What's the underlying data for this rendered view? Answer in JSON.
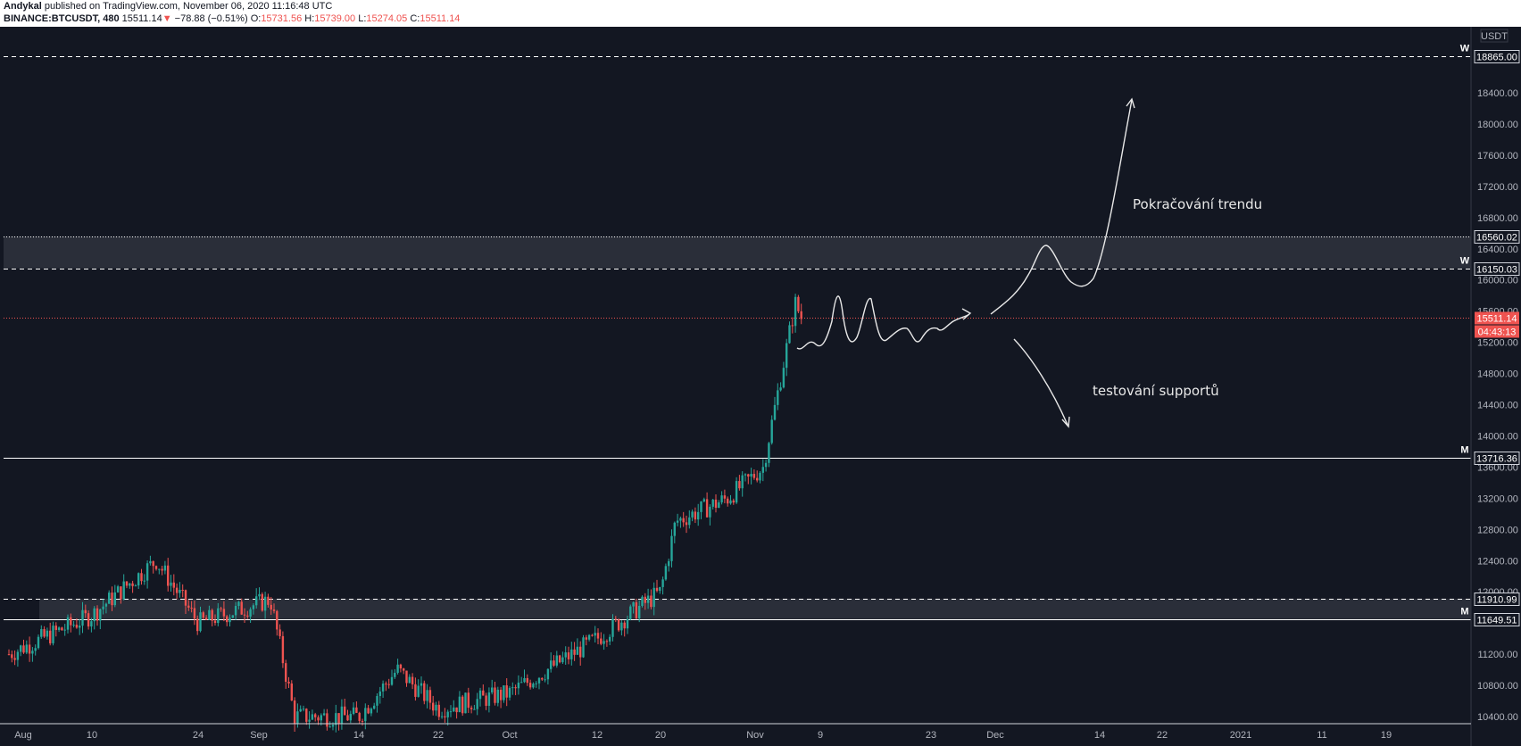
{
  "header": {
    "author": "Andykal",
    "published": " published on TradingView.com, November 06, 2020 11:16:48 UTC",
    "symbol": "BINANCE:BTCUSDT, 480",
    "last": "15511.14",
    "change_arrow": "▼",
    "change": "−78.88 (−0.51%)",
    "o_label": "O:",
    "o_val": "15731.56",
    "h_label": "H:",
    "h_val": "15739.00",
    "l_label": "L:",
    "l_val": "15274.05",
    "c_label": "C:",
    "c_val": "15511.14"
  },
  "price_axis": {
    "currency_label": "USDT",
    "ticks": [
      "18400.00",
      "18000.00",
      "17600.00",
      "17200.00",
      "16800.00",
      "16400.00",
      "16000.00",
      "15600.00",
      "15200.00",
      "14800.00",
      "14400.00",
      "14000.00",
      "13600.00",
      "13200.00",
      "12800.00",
      "12400.00",
      "12000.00",
      "11200.00",
      "10800.00",
      "10400.00"
    ],
    "last_price_label": "15511.14",
    "countdown_label": "04:43:13"
  },
  "time_axis": {
    "labels": [
      "Aug",
      "10",
      "24",
      "Sep",
      "14",
      "22",
      "Oct",
      "12",
      "20",
      "Nov",
      "9",
      "23",
      "Dec",
      "14",
      "22",
      "2021",
      "11",
      "19"
    ]
  },
  "levels": [
    {
      "price": 18865.0,
      "label": "18865.00",
      "style": "dashed",
      "tag": "W"
    },
    {
      "price": 16560.02,
      "label": "16560.02",
      "style": "dotted",
      "tag": ""
    },
    {
      "price": 16150.03,
      "label": "16150.03",
      "style": "dashed",
      "tag": "W"
    },
    {
      "price": 13716.36,
      "label": "13716.36",
      "style": "solid",
      "tag": "M"
    },
    {
      "price": 11910.99,
      "label": "11910.99",
      "style": "dashed",
      "tag": ""
    },
    {
      "price": 11649.51,
      "label": "11649.51",
      "style": "solid",
      "tag": "M"
    }
  ],
  "annotations": {
    "bull_text": "Pokračování trendu",
    "bear_text": "testování supportů"
  },
  "colors": {
    "background": "#131722",
    "up": "#26a69a",
    "down": "#ef5350",
    "zone": "#2a2e39",
    "line": "#ffffff",
    "axis_text": "#b2b5be"
  },
  "chart_data": {
    "type": "candlestick",
    "symbol": "BINANCE:BTCUSDT",
    "timeframe": "480",
    "last_close": 15511.14,
    "y_range": [
      10400,
      18865
    ],
    "anchors": [
      {
        "date": "Aug 1",
        "price": 11200
      },
      {
        "date": "Aug 10",
        "price": 11700
      },
      {
        "date": "Aug 17",
        "price": 12400
      },
      {
        "date": "Aug 24",
        "price": 11600
      },
      {
        "date": "Sep 1",
        "price": 11900
      },
      {
        "date": "Sep 5",
        "price": 10400
      },
      {
        "date": "Sep 14",
        "price": 10400
      },
      {
        "date": "Sep 18",
        "price": 11000
      },
      {
        "date": "Sep 22",
        "price": 10500
      },
      {
        "date": "Oct 1",
        "price": 10700
      },
      {
        "date": "Oct 12",
        "price": 11400
      },
      {
        "date": "Oct 20",
        "price": 12000
      },
      {
        "date": "Oct 22",
        "price": 12900
      },
      {
        "date": "Oct 28",
        "price": 13200
      },
      {
        "date": "Nov 1",
        "price": 13600
      },
      {
        "date": "Nov 5",
        "price": 15700
      },
      {
        "date": "Nov 6",
        "price": 15511.14
      }
    ]
  }
}
